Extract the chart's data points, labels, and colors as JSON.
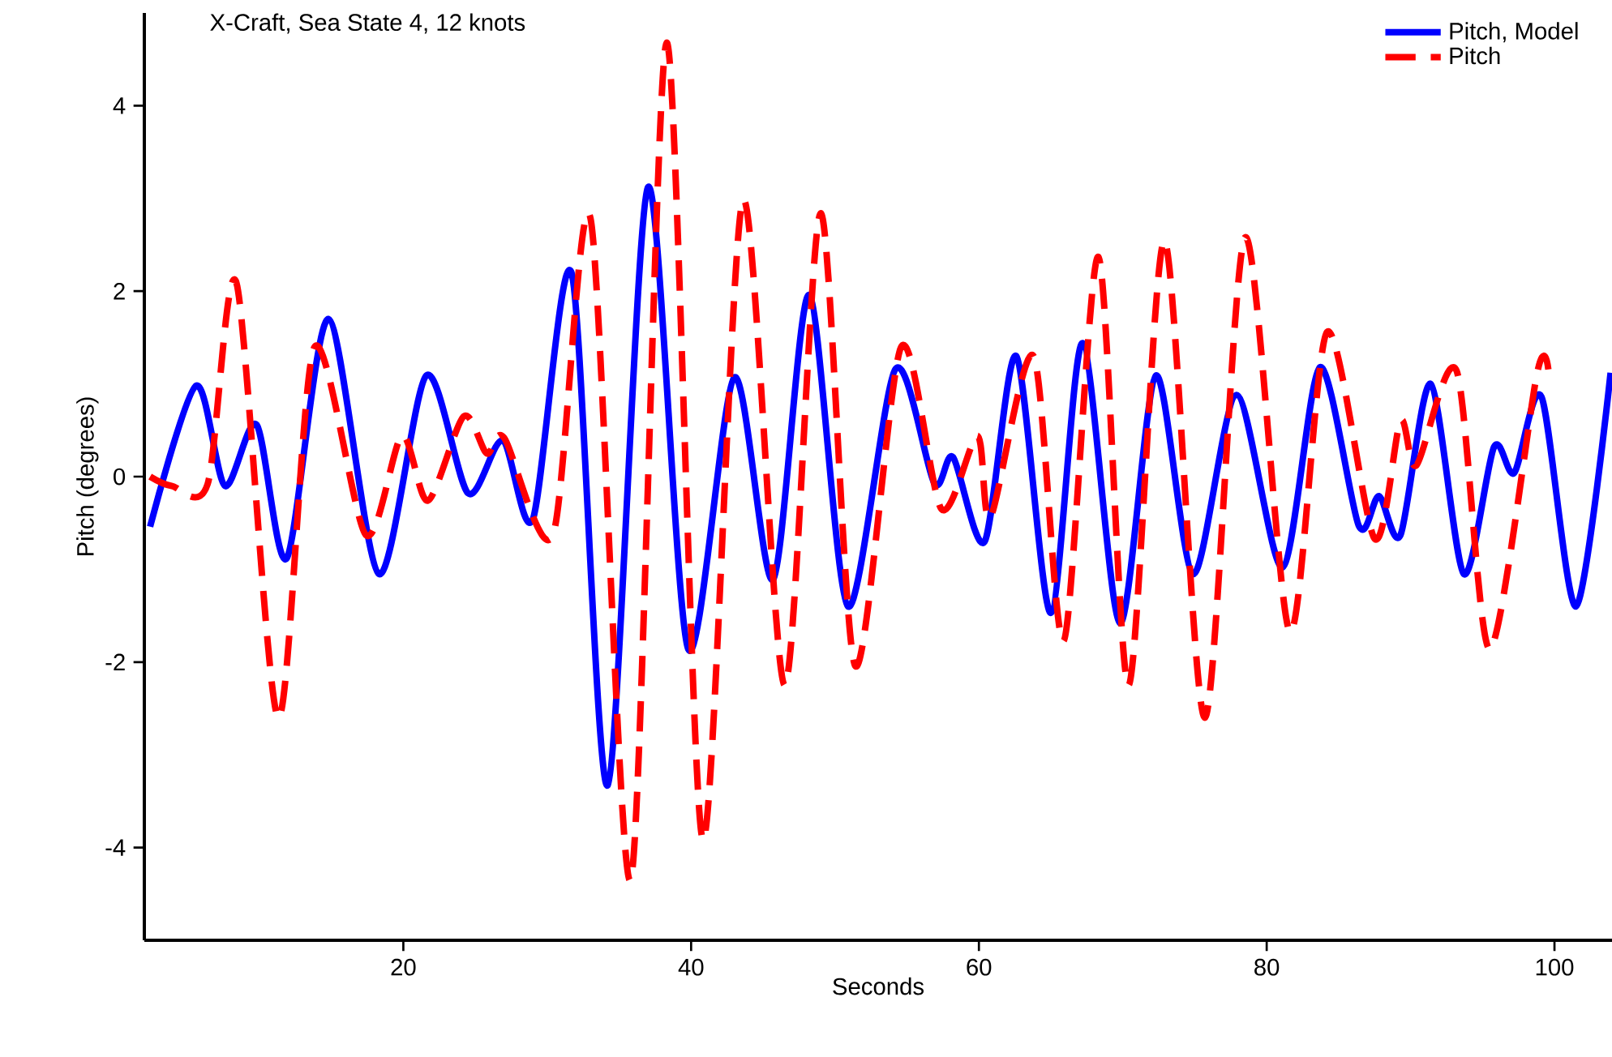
{
  "chart_data": {
    "type": "line",
    "title": "X-Craft, Sea State 4, 12 knots",
    "xlabel": "Seconds",
    "ylabel": "Pitch (degrees)",
    "xlim": [
      2,
      104
    ],
    "ylim": [
      -5,
      5
    ],
    "xticks": [
      20,
      40,
      60,
      80,
      100
    ],
    "yticks": [
      -4,
      -2,
      0,
      2,
      4
    ],
    "grid": false,
    "legend": "top right",
    "series": [
      {
        "name": "Pitch, Model",
        "color": "#0000ff",
        "line_style": "solid",
        "x": [
          2.4,
          5.6,
          7.6,
          9.8,
          11.9,
          14.8,
          18.3,
          21.6,
          24.5,
          26.9,
          29.0,
          31.7,
          34.2,
          37.0,
          39.8,
          43.0,
          45.7,
          48.2,
          50.9,
          54.2,
          56.9,
          58.2,
          60.4,
          62.6,
          65.0,
          67.2,
          69.8,
          72.3,
          74.9,
          77.9,
          81.1,
          83.7,
          86.4,
          87.8,
          89.3,
          91.4,
          93.7,
          95.8,
          97.2,
          99.1,
          101.5,
          103.9
        ],
        "values": [
          -0.54,
          0.98,
          -0.1,
          0.56,
          -0.88,
          1.7,
          -1.05,
          1.09,
          -0.18,
          0.39,
          -0.46,
          2.19,
          -3.33,
          3.12,
          -1.86,
          1.07,
          -1.11,
          1.96,
          -1.4,
          1.16,
          -0.07,
          0.21,
          -0.7,
          1.3,
          -1.47,
          1.44,
          -1.58,
          1.09,
          -1.05,
          0.88,
          -0.98,
          1.18,
          -0.53,
          -0.21,
          -0.63,
          1.0,
          -1.05,
          0.32,
          0.04,
          0.86,
          -1.4,
          1.12
        ]
      },
      {
        "name": "Pitch",
        "color": "#ff0000",
        "line_style": "dashed",
        "x": [
          2.4,
          3.9,
          6.4,
          8.4,
          11.3,
          13.8,
          17.4,
          19.9,
          21.7,
          24.2,
          25.8,
          27.0,
          30.4,
          33.0,
          35.8,
          38.3,
          40.8,
          43.6,
          46.5,
          49.0,
          51.4,
          54.6,
          57.4,
          59.9,
          60.8,
          63.8,
          65.9,
          68.3,
          70.4,
          72.9,
          75.7,
          78.5,
          81.6,
          84.2,
          87.5,
          89.3,
          90.4,
          93.2,
          95.5,
          98.8,
          99.6
        ],
        "values": [
          0.0,
          -0.1,
          -0.08,
          2.09,
          -2.6,
          1.39,
          -0.63,
          0.44,
          -0.26,
          0.65,
          0.25,
          0.42,
          -0.63,
          2.79,
          -4.35,
          4.68,
          -3.91,
          2.98,
          -2.25,
          2.84,
          -2.04,
          1.4,
          -0.35,
          0.44,
          -0.44,
          1.3,
          -1.77,
          2.37,
          -2.25,
          2.54,
          -2.6,
          2.58,
          -1.67,
          1.56,
          -0.67,
          0.6,
          0.12,
          1.14,
          -1.86,
          1.12,
          1.12
        ]
      }
    ]
  }
}
